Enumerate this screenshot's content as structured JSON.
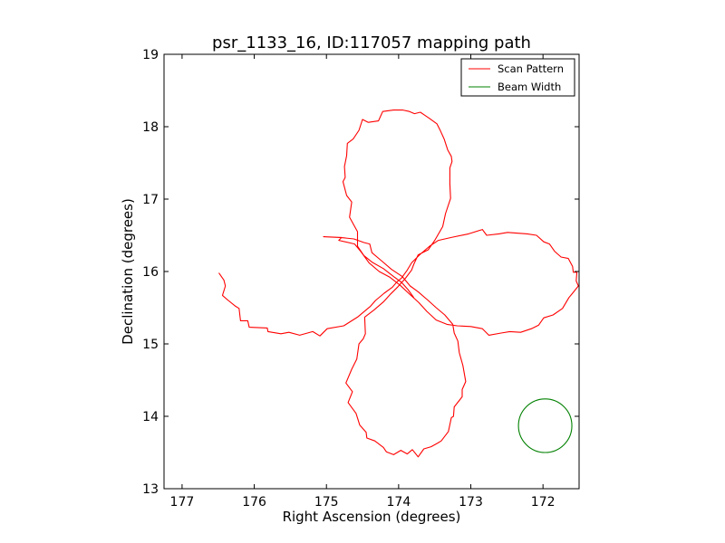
{
  "chart_data": {
    "type": "line",
    "title": "psr_1133_16, ID:117057 mapping path",
    "xlabel": "Right Ascension (degrees)",
    "ylabel": "Declination (degrees)",
    "xlim": [
      177.25,
      171.5
    ],
    "ylim": [
      13,
      19
    ],
    "x_inverted": true,
    "xticks": [
      177,
      176,
      175,
      174,
      173,
      172
    ],
    "yticks": [
      13,
      14,
      15,
      16,
      17,
      18,
      19
    ],
    "grid": false,
    "legend": {
      "placement": "top-right",
      "entries": [
        {
          "label": "Scan Pattern",
          "color": "#ff0000"
        },
        {
          "label": "Beam Width",
          "color": "#008000"
        }
      ]
    },
    "series": [
      {
        "name": "Scan Pattern",
        "color": "#ff0000",
        "points": [
          [
            176.49,
            15.98
          ],
          [
            176.42,
            15.88
          ],
          [
            176.4,
            15.8
          ],
          [
            176.44,
            15.67
          ],
          [
            176.36,
            15.6
          ],
          [
            176.26,
            15.52
          ],
          [
            176.21,
            15.49
          ],
          [
            176.19,
            15.32
          ],
          [
            176.09,
            15.32
          ],
          [
            176.07,
            15.23
          ],
          [
            175.82,
            15.22
          ],
          [
            175.81,
            15.17
          ],
          [
            175.63,
            15.14
          ],
          [
            175.52,
            15.16
          ],
          [
            175.37,
            15.12
          ],
          [
            175.19,
            15.17
          ],
          [
            175.09,
            15.11
          ],
          [
            174.99,
            15.21
          ],
          [
            174.76,
            15.25
          ],
          [
            174.57,
            15.37
          ],
          [
            174.45,
            15.47
          ],
          [
            174.39,
            15.52
          ],
          [
            174.32,
            15.6
          ],
          [
            174.2,
            15.7
          ],
          [
            174.09,
            15.78
          ],
          [
            174.02,
            15.86
          ],
          [
            173.96,
            15.91
          ],
          [
            173.88,
            16.02
          ],
          [
            173.82,
            16.12
          ],
          [
            173.71,
            16.23
          ],
          [
            173.57,
            16.35
          ],
          [
            173.45,
            16.43
          ],
          [
            173.27,
            16.47
          ],
          [
            173.03,
            16.52
          ],
          [
            172.84,
            16.58
          ],
          [
            172.78,
            16.5
          ],
          [
            172.61,
            16.52
          ],
          [
            172.49,
            16.54
          ],
          [
            172.22,
            16.52
          ],
          [
            172.09,
            16.5
          ],
          [
            171.99,
            16.41
          ],
          [
            171.91,
            16.38
          ],
          [
            171.84,
            16.28
          ],
          [
            171.75,
            16.2
          ],
          [
            171.65,
            16.18
          ],
          [
            171.59,
            16.07
          ],
          [
            171.58,
            15.99
          ],
          [
            171.53,
            15.99
          ],
          [
            171.54,
            15.87
          ],
          [
            171.51,
            15.8
          ],
          [
            171.59,
            15.7
          ],
          [
            171.64,
            15.64
          ],
          [
            171.73,
            15.49
          ],
          [
            171.86,
            15.4
          ],
          [
            171.99,
            15.36
          ],
          [
            172.06,
            15.26
          ],
          [
            172.16,
            15.21
          ],
          [
            172.31,
            15.16
          ],
          [
            172.46,
            15.17
          ],
          [
            172.58,
            15.15
          ],
          [
            172.75,
            15.12
          ],
          [
            172.84,
            15.21
          ],
          [
            173.0,
            15.24
          ],
          [
            173.19,
            15.25
          ],
          [
            173.33,
            15.27
          ],
          [
            173.48,
            15.33
          ],
          [
            173.61,
            15.45
          ],
          [
            173.72,
            15.57
          ],
          [
            173.84,
            15.68
          ],
          [
            173.98,
            15.81
          ],
          [
            174.12,
            15.92
          ],
          [
            174.27,
            16.0
          ],
          [
            174.41,
            16.12
          ],
          [
            174.52,
            16.27
          ],
          [
            174.61,
            16.38
          ],
          [
            174.83,
            16.43
          ],
          [
            174.79,
            16.47
          ],
          [
            175.04,
            16.48
          ],
          [
            174.81,
            16.47
          ],
          [
            174.62,
            16.45
          ],
          [
            174.48,
            16.4
          ],
          [
            174.4,
            16.38
          ],
          [
            174.37,
            16.26
          ],
          [
            174.24,
            16.15
          ],
          [
            174.1,
            16.03
          ],
          [
            173.95,
            15.93
          ],
          [
            173.84,
            15.8
          ],
          [
            173.73,
            15.72
          ],
          [
            173.59,
            15.6
          ],
          [
            173.48,
            15.5
          ],
          [
            173.36,
            15.4
          ],
          [
            173.25,
            15.27
          ],
          [
            173.23,
            15.15
          ],
          [
            173.18,
            15.04
          ],
          [
            173.16,
            14.88
          ],
          [
            173.11,
            14.7
          ],
          [
            173.07,
            14.48
          ],
          [
            173.12,
            14.37
          ],
          [
            173.12,
            14.27
          ],
          [
            173.23,
            14.13
          ],
          [
            173.24,
            14.0
          ],
          [
            173.27,
            13.98
          ],
          [
            173.31,
            13.79
          ],
          [
            173.41,
            13.66
          ],
          [
            173.46,
            13.63
          ],
          [
            173.55,
            13.58
          ],
          [
            173.65,
            13.55
          ],
          [
            173.73,
            13.44
          ],
          [
            173.81,
            13.54
          ],
          [
            173.88,
            13.48
          ],
          [
            173.97,
            13.53
          ],
          [
            174.07,
            13.47
          ],
          [
            174.17,
            13.51
          ],
          [
            174.21,
            13.57
          ],
          [
            174.33,
            13.66
          ],
          [
            174.44,
            13.7
          ],
          [
            174.45,
            13.78
          ],
          [
            174.54,
            13.88
          ],
          [
            174.59,
            14.04
          ],
          [
            174.7,
            14.19
          ],
          [
            174.64,
            14.34
          ],
          [
            174.73,
            14.46
          ],
          [
            174.65,
            14.65
          ],
          [
            174.58,
            14.79
          ],
          [
            174.55,
            15.0
          ],
          [
            174.49,
            15.07
          ],
          [
            174.46,
            15.14
          ],
          [
            174.47,
            15.37
          ],
          [
            174.34,
            15.47
          ],
          [
            174.21,
            15.58
          ],
          [
            174.11,
            15.69
          ],
          [
            174.01,
            15.79
          ],
          [
            173.91,
            15.9
          ],
          [
            173.82,
            16.02
          ],
          [
            173.79,
            16.1
          ],
          [
            173.73,
            16.23
          ],
          [
            173.59,
            16.3
          ],
          [
            173.5,
            16.43
          ],
          [
            173.39,
            16.62
          ],
          [
            173.35,
            16.8
          ],
          [
            173.28,
            17.01
          ],
          [
            173.29,
            17.21
          ],
          [
            173.29,
            17.43
          ],
          [
            173.26,
            17.52
          ],
          [
            173.27,
            17.59
          ],
          [
            173.32,
            17.68
          ],
          [
            173.37,
            17.83
          ],
          [
            173.42,
            17.94
          ],
          [
            173.47,
            18.04
          ],
          [
            173.58,
            18.12
          ],
          [
            173.64,
            18.16
          ],
          [
            173.7,
            18.2
          ],
          [
            173.78,
            18.18
          ],
          [
            173.85,
            18.21
          ],
          [
            173.94,
            18.23
          ],
          [
            174.07,
            18.23
          ],
          [
            174.22,
            18.21
          ],
          [
            174.28,
            18.08
          ],
          [
            174.42,
            18.06
          ],
          [
            174.5,
            18.1
          ],
          [
            174.55,
            17.95
          ],
          [
            174.63,
            17.83
          ],
          [
            174.71,
            17.77
          ],
          [
            174.72,
            17.6
          ],
          [
            174.75,
            17.45
          ],
          [
            174.74,
            17.3
          ],
          [
            174.77,
            17.24
          ],
          [
            174.72,
            17.05
          ],
          [
            174.65,
            16.96
          ],
          [
            174.68,
            16.75
          ],
          [
            174.57,
            16.55
          ],
          [
            174.57,
            16.35
          ],
          [
            174.48,
            16.22
          ],
          [
            174.37,
            16.13
          ],
          [
            174.21,
            16.04
          ],
          [
            174.07,
            15.93
          ],
          [
            173.96,
            15.85
          ],
          [
            173.87,
            15.75
          ],
          [
            173.79,
            15.64
          ]
        ]
      },
      {
        "name": "Beam Width",
        "color": "#008000",
        "center": [
          171.97,
          13.87
        ],
        "radius": 0.37
      }
    ]
  }
}
